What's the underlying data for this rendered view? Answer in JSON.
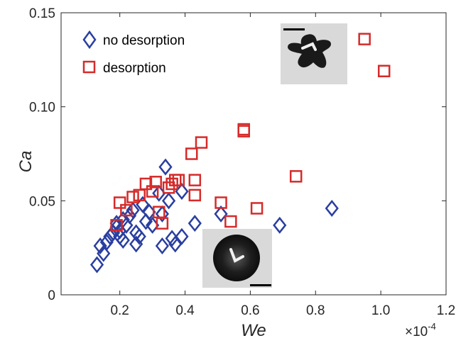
{
  "chart_data": {
    "type": "scatter",
    "xlabel": "We",
    "ylabel": "Ca",
    "x_multiplier": "×10",
    "x_multiplier_exp": "-4",
    "xlim": [
      0.02,
      1.2
    ],
    "ylim": [
      0,
      0.15
    ],
    "xticks": [
      "0.2",
      "0.4",
      "0.6",
      "0.8",
      "1.0",
      "1.2"
    ],
    "yticks": [
      "0",
      "0.05",
      "0.10",
      "0.15"
    ],
    "xtick_values": [
      0.2,
      0.4,
      0.6,
      0.8,
      1.0,
      1.2
    ],
    "ytick_values": [
      0,
      0.05,
      0.1,
      0.15
    ],
    "legend_position": "top-left",
    "grid": false,
    "series": [
      {
        "name": "no desorption",
        "marker": "diamond",
        "color": "#2a3f9f",
        "points": [
          [
            0.13,
            0.016
          ],
          [
            0.14,
            0.026
          ],
          [
            0.15,
            0.022
          ],
          [
            0.16,
            0.028
          ],
          [
            0.17,
            0.031
          ],
          [
            0.18,
            0.033
          ],
          [
            0.19,
            0.036
          ],
          [
            0.19,
            0.038
          ],
          [
            0.2,
            0.034
          ],
          [
            0.2,
            0.031
          ],
          [
            0.21,
            0.029
          ],
          [
            0.21,
            0.04
          ],
          [
            0.22,
            0.037
          ],
          [
            0.23,
            0.042
          ],
          [
            0.24,
            0.045
          ],
          [
            0.25,
            0.033
          ],
          [
            0.25,
            0.027
          ],
          [
            0.26,
            0.031
          ],
          [
            0.27,
            0.048
          ],
          [
            0.28,
            0.039
          ],
          [
            0.29,
            0.044
          ],
          [
            0.3,
            0.037
          ],
          [
            0.32,
            0.054
          ],
          [
            0.33,
            0.043
          ],
          [
            0.33,
            0.026
          ],
          [
            0.34,
            0.068
          ],
          [
            0.35,
            0.05
          ],
          [
            0.36,
            0.03
          ],
          [
            0.37,
            0.027
          ],
          [
            0.39,
            0.031
          ],
          [
            0.39,
            0.055
          ],
          [
            0.43,
            0.038
          ],
          [
            0.51,
            0.043
          ],
          [
            0.69,
            0.037
          ],
          [
            0.85,
            0.046
          ]
        ]
      },
      {
        "name": "desorption",
        "marker": "square",
        "color": "#d52b2b",
        "points": [
          [
            0.19,
            0.037
          ],
          [
            0.2,
            0.049
          ],
          [
            0.22,
            0.045
          ],
          [
            0.24,
            0.052
          ],
          [
            0.26,
            0.053
          ],
          [
            0.28,
            0.059
          ],
          [
            0.3,
            0.055
          ],
          [
            0.31,
            0.06
          ],
          [
            0.32,
            0.044
          ],
          [
            0.33,
            0.038
          ],
          [
            0.35,
            0.057
          ],
          [
            0.36,
            0.059
          ],
          [
            0.37,
            0.061
          ],
          [
            0.38,
            0.061
          ],
          [
            0.42,
            0.075
          ],
          [
            0.43,
            0.061
          ],
          [
            0.43,
            0.053
          ],
          [
            0.45,
            0.081
          ],
          [
            0.51,
            0.049
          ],
          [
            0.54,
            0.039
          ],
          [
            0.58,
            0.087
          ],
          [
            0.58,
            0.088
          ],
          [
            0.62,
            0.046
          ],
          [
            0.74,
            0.063
          ],
          [
            0.95,
            0.136
          ],
          [
            1.01,
            0.119
          ]
        ]
      }
    ]
  }
}
